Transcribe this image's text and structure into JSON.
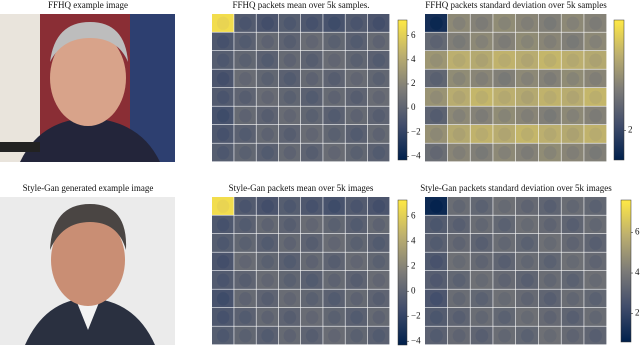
{
  "panels": [
    {
      "title": "FFHQ example image"
    },
    {
      "title": "FFHQ packets mean over 5k samples.",
      "colorbar": {
        "range": [
          -4.3,
          7.3
        ],
        "ticks": [
          {
            "value": -4,
            "label": "−4"
          },
          {
            "value": -2,
            "label": "−2"
          },
          0,
          2,
          4,
          6
        ]
      }
    },
    {
      "title": "FFHQ packets standard deviation over 5k samples",
      "colorbar": {
        "range": [
          0.6,
          7.2
        ],
        "ticks": [
          2
        ]
      }
    },
    {
      "title": "Style-Gan generated example image"
    },
    {
      "title": "Style-Gan packets mean over 5k images",
      "colorbar": {
        "range": [
          -4.3,
          7.3
        ],
        "ticks": [
          {
            "value": -4,
            "label": "−4"
          },
          {
            "value": -2,
            "label": "−2"
          },
          0,
          2,
          4,
          6
        ]
      }
    },
    {
      "title": "Style-Gan packets standard deviation over 5k images",
      "colorbar": {
        "range": [
          0.6,
          7.6
        ],
        "ticks": [
          2,
          4,
          6
        ]
      }
    }
  ]
}
